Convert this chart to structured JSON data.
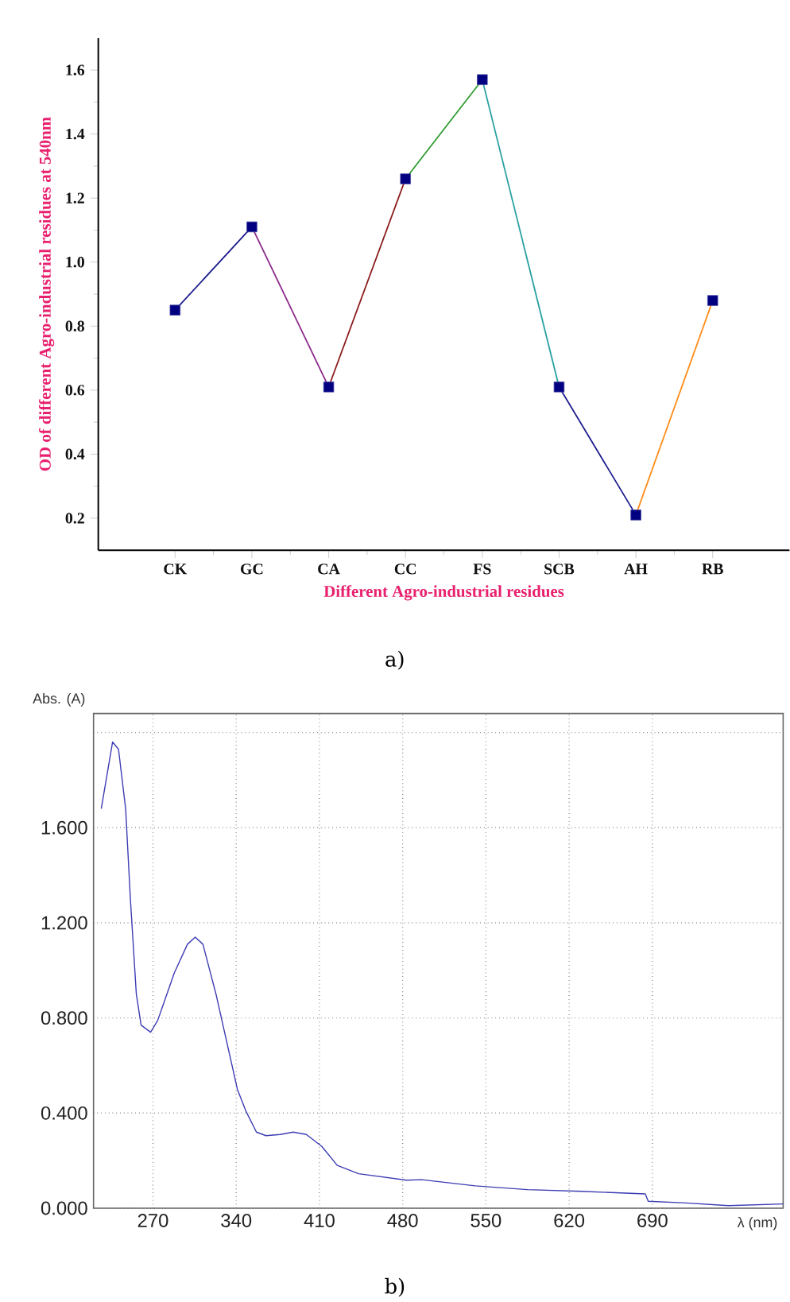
{
  "chart_data": [
    {
      "type": "line",
      "categories": [
        "CK",
        "GC",
        "CA",
        "CC",
        "FS",
        "SCB",
        "AH",
        "RB"
      ],
      "xlabel": "Different Agro-industrial residues",
      "ylabel": "OD of different Agro-industrial residues at 540nm",
      "ylim": [
        0.1,
        1.7
      ],
      "yticks": [
        {
          "value": 0.2,
          "label": "0.2"
        },
        {
          "value": 0.4,
          "label": "0.4"
        },
        {
          "value": 0.6,
          "label": "0.6"
        },
        {
          "value": 0.8,
          "label": "0.8"
        },
        {
          "value": 1.0,
          "label": "1.0"
        },
        {
          "value": 1.2,
          "label": "1.2"
        },
        {
          "value": 1.4,
          "label": "1.4"
        },
        {
          "value": 1.6,
          "label": "1.6"
        }
      ],
      "marker": "none",
      "annotations": [
        "a)"
      ],
      "series": [
        {
          "color": "#1c1c8c",
          "values": [
            0.85,
            1.11,
            null,
            null,
            null,
            null,
            null,
            null
          ]
        },
        {
          "color": "#8b2a8b",
          "values": [
            null,
            1.11,
            0.61,
            null,
            null,
            null,
            null,
            null
          ]
        },
        {
          "color": "#8b1c1c",
          "values": [
            null,
            null,
            0.61,
            1.26,
            null,
            null,
            null,
            null
          ]
        },
        {
          "color": "#2e9b2e",
          "values": [
            null,
            null,
            null,
            1.26,
            1.57,
            null,
            null,
            null
          ]
        },
        {
          "color": "#2aa0a0",
          "values": [
            null,
            null,
            null,
            null,
            1.57,
            0.61,
            null,
            null
          ]
        },
        {
          "color": "#1c1c8c",
          "values": [
            null,
            null,
            null,
            null,
            null,
            0.61,
            0.21,
            null
          ]
        },
        {
          "color": "#ff8c1a",
          "values": [
            null,
            null,
            null,
            null,
            null,
            null,
            0.21,
            0.88
          ]
        },
        {
          "type": "scatter",
          "marker": "square",
          "color": "#000080",
          "values": [
            0.85,
            1.11,
            0.61,
            1.26,
            1.57,
            0.61,
            0.21,
            0.88
          ]
        }
      ]
    },
    {
      "type": "line",
      "xlabel": "λ (nm)",
      "ylabel": "Abs. (A)",
      "xlim": [
        220,
        800
      ],
      "ylim": [
        0,
        2.08
      ],
      "xticks": [
        270,
        340,
        410,
        480,
        550,
        620,
        690
      ],
      "yticks": [
        {
          "value": 0,
          "label": "0.000"
        },
        {
          "value": 0.4,
          "label": "0.400"
        },
        {
          "value": 0.8,
          "label": "0.800"
        },
        {
          "value": 1.2,
          "label": "1.200"
        },
        {
          "value": 1.6,
          "label": "1.600"
        },
        {
          "value": 2.0,
          "label": null
        }
      ],
      "grid": true,
      "annotations": [
        "b)"
      ],
      "color": "#3c3cb4",
      "x": [
        226.5,
        236,
        241,
        247,
        251,
        256,
        260,
        268,
        274,
        288,
        299,
        305.5,
        312,
        323,
        332,
        341,
        348,
        357,
        365,
        377,
        388,
        399,
        412,
        425,
        443,
        483,
        496,
        541,
        585,
        630,
        684,
        686.5,
        718,
        754,
        800
      ],
      "values": [
        1.68,
        1.96,
        1.93,
        1.68,
        1.3,
        0.9,
        0.77,
        0.74,
        0.79,
        0.99,
        1.11,
        1.14,
        1.11,
        0.9,
        0.7,
        0.5,
        0.41,
        0.32,
        0.305,
        0.31,
        0.32,
        0.31,
        0.26,
        0.18,
        0.145,
        0.118,
        0.12,
        0.094,
        0.078,
        0.071,
        0.06,
        0.029,
        0.022,
        0.011,
        0.018
      ]
    }
  ]
}
